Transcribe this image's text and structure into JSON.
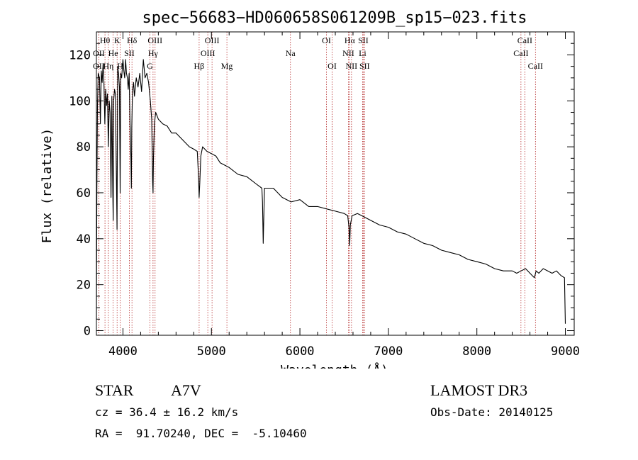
{
  "chart_data": {
    "type": "line",
    "title": "spec−56683−HD060658S061209B_sp15−023.fits",
    "xlabel": "Wavelength (Å)",
    "ylabel": "Flux (relative)",
    "xlim": [
      3700,
      9100
    ],
    "ylim": [
      -2,
      130
    ],
    "xticks": [
      4000,
      5000,
      6000,
      7000,
      8000,
      9000
    ],
    "yticks": [
      0,
      20,
      40,
      60,
      80,
      100,
      120
    ],
    "series": [
      {
        "name": "spectrum",
        "x": [
          3700,
          3705,
          3712,
          3720,
          3735,
          3745,
          3755,
          3765,
          3775,
          3785,
          3795,
          3805,
          3815,
          3825,
          3835,
          3845,
          3855,
          3865,
          3875,
          3885,
          3890,
          3895,
          3905,
          3915,
          3925,
          3933,
          3940,
          3950,
          3960,
          3968,
          3975,
          3985,
          4000,
          4010,
          4020,
          4030,
          4040,
          4050,
          4060,
          4070,
          4080,
          4090,
          4095,
          4100,
          4105,
          4110,
          4120,
          4130,
          4150,
          4170,
          4190,
          4210,
          4230,
          4250,
          4270,
          4290,
          4310,
          4325,
          4335,
          4340,
          4345,
          4355,
          4370,
          4400,
          4450,
          4500,
          4550,
          4600,
          4650,
          4700,
          4750,
          4800,
          4840,
          4855,
          4861,
          4868,
          4880,
          4900,
          4950,
          5000,
          5050,
          5100,
          5200,
          5300,
          5400,
          5500,
          5570,
          5577,
          5585,
          5600,
          5700,
          5800,
          5900,
          6000,
          6100,
          6200,
          6300,
          6400,
          6500,
          6540,
          6555,
          6563,
          6570,
          6590,
          6650,
          6700,
          6800,
          6900,
          7000,
          7100,
          7200,
          7300,
          7400,
          7500,
          7600,
          7700,
          7800,
          7900,
          8000,
          8100,
          8200,
          8300,
          8400,
          8450,
          8500,
          8550,
          8600,
          8650,
          8670,
          8700,
          8750,
          8800,
          8850,
          8900,
          8950,
          8990,
          9000
        ],
        "values": [
          5,
          60,
          98,
          112,
          110,
          90,
          113,
          108,
          116,
          108,
          90,
          105,
          98,
          103,
          80,
          100,
          95,
          58,
          102,
          60,
          48,
          100,
          105,
          103,
          70,
          44,
          115,
          112,
          106,
          60,
          112,
          110,
          118,
          113,
          110,
          118,
          112,
          110,
          105,
          112,
          90,
          75,
          62,
          88,
          100,
          105,
          108,
          102,
          110,
          106,
          112,
          104,
          118,
          110,
          112,
          108,
          100,
          92,
          65,
          60,
          75,
          90,
          95,
          92,
          90,
          89,
          86,
          86,
          84,
          82,
          80,
          79,
          78,
          66,
          58,
          64,
          76,
          80,
          78,
          77,
          76,
          73,
          71,
          68,
          67,
          64,
          62,
          56,
          38,
          62,
          62,
          58,
          56,
          57,
          54,
          54,
          53,
          52,
          51,
          50,
          45,
          37,
          46,
          50,
          51,
          50,
          48,
          46,
          45,
          43,
          42,
          40,
          38,
          37,
          35,
          34,
          33,
          31,
          30,
          29,
          27,
          26,
          26,
          25,
          26,
          27,
          25,
          23,
          26,
          25,
          27,
          26,
          25,
          26,
          24,
          23,
          3
        ]
      }
    ],
    "lines": [
      {
        "label": "Hθ",
        "x": 3797,
        "row": 0
      },
      {
        "label": "K",
        "x": 3934,
        "row": 0
      },
      {
        "label": "Hδ",
        "x": 4102,
        "row": 0
      },
      {
        "label": "OII",
        "x": 3727,
        "row": 1
      },
      {
        "label": "He",
        "x": 3889,
        "row": 1
      },
      {
        "label": "SII",
        "x": 4072,
        "row": 1
      },
      {
        "label": "OII",
        "x": 3727,
        "row": 2
      },
      {
        "label": "Hη",
        "x": 3835,
        "row": 2
      },
      {
        "label": "H",
        "x": 3969,
        "row": 2
      },
      {
        "label": "OIII",
        "x": 4363,
        "row": 0
      },
      {
        "label": "Hγ",
        "x": 4340,
        "row": 1
      },
      {
        "label": "G",
        "x": 4305,
        "row": 2
      },
      {
        "label": "OIII",
        "x": 5007,
        "row": 0
      },
      {
        "label": "OIII",
        "x": 4959,
        "row": 1
      },
      {
        "label": "Hβ",
        "x": 4861,
        "row": 2
      },
      {
        "label": "Mg",
        "x": 5175,
        "row": 2
      },
      {
        "label": "Na",
        "x": 5893,
        "row": 1
      },
      {
        "label": "OI",
        "x": 6300,
        "row": 0
      },
      {
        "label": "OI",
        "x": 6364,
        "row": 2
      },
      {
        "label": "Hα",
        "x": 6563,
        "row": 0
      },
      {
        "label": "SII",
        "x": 6716,
        "row": 0
      },
      {
        "label": "NII",
        "x": 6548,
        "row": 1
      },
      {
        "label": "Li",
        "x": 6708,
        "row": 1
      },
      {
        "label": "NII",
        "x": 6583,
        "row": 2
      },
      {
        "label": "SII",
        "x": 6731,
        "row": 2
      },
      {
        "label": "CaII",
        "x": 8542,
        "row": 0
      },
      {
        "label": "CaII",
        "x": 8498,
        "row": 1
      },
      {
        "label": "CaII",
        "x": 8662,
        "row": 2
      }
    ]
  },
  "info": {
    "class": "STAR",
    "subclass": "A7V",
    "cz": "cz = 36.4 ± 16.2 km/s",
    "coords": "RA =  91.70240, DEC =  -5.10460",
    "survey": "LAMOST DR3",
    "obsdate": "Obs-Date: 20140125"
  },
  "colors": {
    "line_marker": "#b22222",
    "spectrum": "#000000"
  }
}
